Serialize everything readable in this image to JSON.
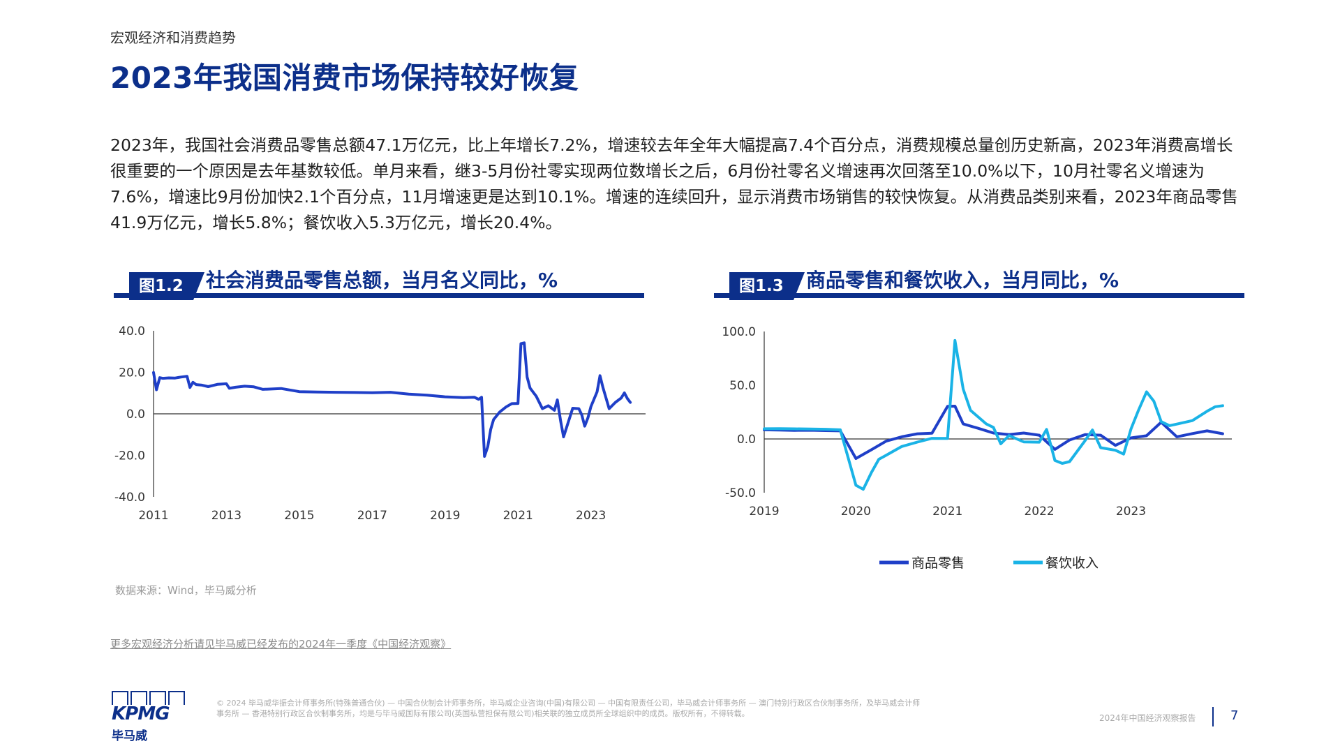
{
  "header": {
    "section": "宏观经济和消费趋势",
    "title": "2023年我国消费市场保持较好恢复"
  },
  "body_text": "2023年，我国社会消费品零售总额47.1万亿元，比上年增长7.2%，增速较去年全年大幅提高7.4个百分点，消费规模总量创历史新高，2023年消费高增长很重要的一个原因是去年基数较低。单月来看，继3-5月份社零实现两位数增长之后，6月份社零名义增速再次回落至10.0%以下，10月社零名义增速为7.6%，增速比9月份加快2.1个百分点，11月增速更是达到10.1%。增速的连续回升，显示消费市场销售的较快恢复。从消费品类别来看，2023年商品零售41.9万亿元，增长5.8%；餐饮收入5.3万亿元，增长20.4%。",
  "figures": [
    {
      "tag": "图1.2",
      "title": "社会消费品零售总额，当月名义同比，%"
    },
    {
      "tag": "图1.3",
      "title": "商品零售和餐饮收入，当月同比，%"
    }
  ],
  "colors": {
    "brand": "#0c2f8a",
    "series_dark": "#1f3fc8",
    "series_light": "#1ab3e6"
  },
  "chart_data": [
    {
      "type": "line",
      "ylim": [
        -40,
        40
      ],
      "yticks": [
        "40.0",
        "20.0",
        "0.0",
        "-20.0",
        "-40.0"
      ],
      "ytick_values": [
        40,
        20,
        0,
        -20,
        -40
      ],
      "xlim": [
        2011,
        2024.5
      ],
      "xticks": [
        "2011",
        "2013",
        "2015",
        "2017",
        "2019",
        "2021",
        "2023"
      ],
      "xtick_values": [
        2011,
        2013,
        2015,
        2017,
        2019,
        2021,
        2023
      ],
      "series": [
        {
          "x": [
            2011.0,
            2011.08,
            2011.17,
            2011.25,
            2011.42,
            2011.58,
            2011.75,
            2011.92,
            2012.0,
            2012.08,
            2012.17,
            2012.33,
            2012.5,
            2012.75,
            2013.0,
            2013.08,
            2013.25,
            2013.5,
            2013.75,
            2014.0,
            2014.5,
            2015.0,
            2015.5,
            2016.0,
            2016.5,
            2017.0,
            2017.5,
            2018.0,
            2018.5,
            2019.0,
            2019.5,
            2019.8,
            2019.92,
            2020.0,
            2020.08,
            2020.17,
            2020.25,
            2020.33,
            2020.5,
            2020.67,
            2020.83,
            2021.0,
            2021.08,
            2021.17,
            2021.25,
            2021.33,
            2021.5,
            2021.67,
            2021.83,
            2022.0,
            2022.08,
            2022.17,
            2022.25,
            2022.33,
            2022.5,
            2022.67,
            2022.75,
            2022.83,
            2022.92,
            2023.0,
            2023.17,
            2023.25,
            2023.33,
            2023.5,
            2023.67,
            2023.83,
            2023.92,
            2024.0,
            2024.08
          ],
          "values": [
            19.9,
            11.6,
            17.4,
            17.1,
            17.3,
            17.2,
            17.7,
            18.1,
            12.7,
            15.2,
            14.1,
            13.8,
            13.1,
            14.2,
            14.5,
            12.3,
            12.8,
            13.3,
            13.0,
            11.8,
            12.2,
            10.7,
            10.5,
            10.4,
            10.3,
            10.2,
            10.4,
            9.5,
            9.0,
            8.2,
            7.8,
            8.0,
            7.0,
            8.0,
            -20.5,
            -15.8,
            -7.5,
            -2.8,
            0.9,
            3.3,
            4.9,
            5.0,
            33.8,
            34.2,
            17.7,
            12.4,
            8.5,
            2.5,
            3.9,
            1.7,
            6.7,
            -3.5,
            -11.1,
            -6.7,
            2.7,
            2.5,
            -0.5,
            -5.9,
            -1.8,
            3.5,
            10.6,
            18.4,
            12.7,
            2.5,
            5.5,
            7.6,
            10.1,
            7.4,
            5.5
          ]
        }
      ]
    },
    {
      "type": "line",
      "ylim": [
        -50,
        100
      ],
      "yticks": [
        "100.0",
        "50.0",
        "0.0",
        "-50.0"
      ],
      "ytick_values": [
        100,
        50,
        0,
        -50
      ],
      "xlim": [
        2019,
        2024.1
      ],
      "xticks": [
        "2019",
        "2020",
        "2021",
        "2022",
        "2023"
      ],
      "xtick_values": [
        2019,
        2020,
        2021,
        2022,
        2023
      ],
      "legend_position": "bottom",
      "series": [
        {
          "name": "商品零售",
          "x": [
            2019.0,
            2019.17,
            2019.33,
            2019.5,
            2019.67,
            2019.83,
            2020.0,
            2020.17,
            2020.33,
            2020.5,
            2020.67,
            2020.83,
            2021.0,
            2021.08,
            2021.17,
            2021.33,
            2021.5,
            2021.67,
            2021.83,
            2022.0,
            2022.17,
            2022.33,
            2022.5,
            2022.67,
            2022.83,
            2023.0,
            2023.17,
            2023.33,
            2023.5,
            2023.67,
            2023.83,
            2024.0
          ],
          "values": [
            8.5,
            8.3,
            8.0,
            8.1,
            7.8,
            7.5,
            -18.2,
            -10.0,
            -2.0,
            2.0,
            4.8,
            5.3,
            30.3,
            30.5,
            14.0,
            10.0,
            5.5,
            4.0,
            5.5,
            3.5,
            -9.7,
            -1.0,
            4.0,
            3.5,
            -6.0,
            1.0,
            3.0,
            15.6,
            2.0,
            5.0,
            7.5,
            4.9
          ]
        },
        {
          "name": "餐饮收入",
          "x": [
            2019.0,
            2019.17,
            2019.33,
            2019.5,
            2019.67,
            2019.83,
            2020.0,
            2020.08,
            2020.17,
            2020.25,
            2020.33,
            2020.5,
            2020.67,
            2020.83,
            2021.0,
            2021.08,
            2021.17,
            2021.25,
            2021.42,
            2021.5,
            2021.58,
            2021.67,
            2021.83,
            2022.0,
            2022.08,
            2022.17,
            2022.25,
            2022.33,
            2022.5,
            2022.58,
            2022.67,
            2022.83,
            2022.92,
            2023.0,
            2023.08,
            2023.17,
            2023.25,
            2023.33,
            2023.42,
            2023.5,
            2023.67,
            2023.83,
            2023.92,
            2024.0
          ],
          "values": [
            9.5,
            9.6,
            9.4,
            9.2,
            9.0,
            8.5,
            -43.1,
            -46.8,
            -31.1,
            -18.9,
            -15.2,
            -7.0,
            -2.9,
            0.6,
            0.5,
            91.6,
            46.4,
            26.6,
            14.1,
            10.8,
            -4.5,
            3.1,
            -2.7,
            -3.0,
            8.9,
            -20.0,
            -22.7,
            -21.1,
            -1.5,
            8.4,
            -8.1,
            -10.5,
            -14.1,
            9.2,
            26.3,
            43.8,
            35.1,
            16.1,
            12.4,
            13.8,
            17.1,
            25.8,
            30.0,
            31.0
          ]
        }
      ]
    }
  ],
  "source": "数据来源：Wind，毕马威分析",
  "more_link": "更多宏观经济分析请见毕马威已经发布的2024年一季度《中国经济观察》",
  "footer": {
    "logo_text": "KPMG",
    "logo_cn": "毕马威",
    "disclaimer": "© 2024 毕马威华振会计师事务所(特殊普通合伙) — 中国合伙制会计师事务所，毕马威企业咨询(中国)有限公司 — 中国有限责任公司，毕马威会计师事务所 — 澳门特别行政区合伙制事务所，及毕马威会计师事务所 — 香港特别行政区合伙制事务所，均是与毕马威国际有限公司(英国私营担保有限公司)相关联的独立成员所全球组织中的成员。版权所有，不得转载。",
    "report_name": "2024年中国经济观察报告",
    "page": "7"
  }
}
